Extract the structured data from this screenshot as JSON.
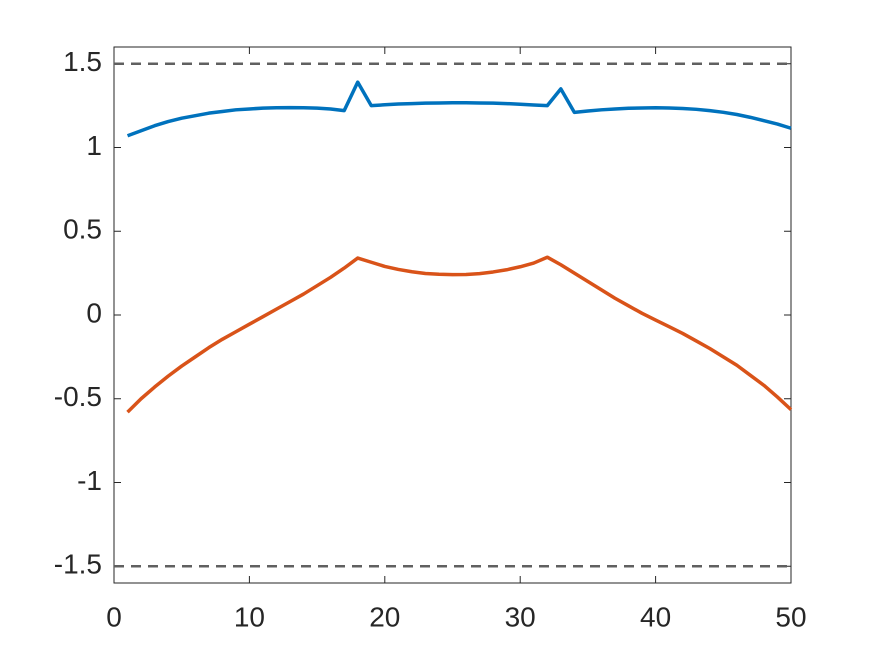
{
  "chart_data": {
    "type": "line",
    "x": [
      1,
      2,
      3,
      4,
      5,
      6,
      7,
      8,
      9,
      10,
      11,
      12,
      13,
      14,
      15,
      16,
      17,
      18,
      19,
      20,
      21,
      22,
      23,
      24,
      25,
      26,
      27,
      28,
      29,
      30,
      31,
      32,
      33,
      34,
      35,
      36,
      37,
      38,
      39,
      40,
      41,
      42,
      43,
      44,
      45,
      46,
      47,
      48,
      49,
      50
    ],
    "series": [
      {
        "color": "#0072BD",
        "values": [
          1.07,
          1.1,
          1.13,
          1.155,
          1.175,
          1.19,
          1.205,
          1.215,
          1.225,
          1.23,
          1.235,
          1.237,
          1.238,
          1.237,
          1.235,
          1.23,
          1.22,
          1.39,
          1.25,
          1.255,
          1.26,
          1.262,
          1.265,
          1.266,
          1.267,
          1.267,
          1.266,
          1.265,
          1.262,
          1.258,
          1.254,
          1.25,
          1.35,
          1.21,
          1.218,
          1.225,
          1.23,
          1.234,
          1.236,
          1.237,
          1.236,
          1.233,
          1.228,
          1.22,
          1.21,
          1.197,
          1.18,
          1.16,
          1.14,
          1.115
        ]
      },
      {
        "color": "#D95319",
        "values": [
          -0.58,
          -0.5,
          -0.43,
          -0.365,
          -0.305,
          -0.25,
          -0.195,
          -0.145,
          -0.1,
          -0.055,
          -0.01,
          0.035,
          0.08,
          0.125,
          0.175,
          0.225,
          0.28,
          0.34,
          0.315,
          0.29,
          0.272,
          0.258,
          0.248,
          0.243,
          0.241,
          0.242,
          0.247,
          0.257,
          0.27,
          0.288,
          0.31,
          0.345,
          0.3,
          0.25,
          0.2,
          0.15,
          0.1,
          0.055,
          0.01,
          -0.03,
          -0.07,
          -0.11,
          -0.155,
          -0.2,
          -0.25,
          -0.3,
          -0.36,
          -0.42,
          -0.49,
          -0.565
        ]
      }
    ],
    "reference_lines": [
      1.5,
      -1.5
    ],
    "reference_color": "#606060",
    "xlim": [
      0,
      50
    ],
    "xticks": [
      0,
      10,
      20,
      30,
      40,
      50
    ],
    "ylim": [
      -1.6,
      1.6
    ],
    "yticks": [
      -1.5,
      -1,
      -0.5,
      0,
      0.5,
      1,
      1.5
    ]
  }
}
